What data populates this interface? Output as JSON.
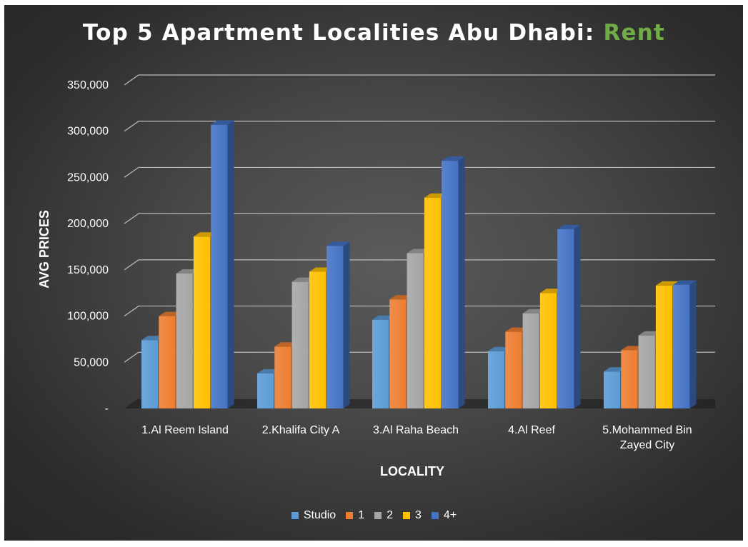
{
  "title": {
    "main": "Top 5 Apartment Localities Abu Dhabi: ",
    "accent": "Rent"
  },
  "chart_data": {
    "type": "bar",
    "title": "Top 5 Apartment Localities Abu Dhabi: Rent",
    "xlabel": "LOCALITY",
    "ylabel": "AVG PRICES",
    "ylim": [
      0,
      350000
    ],
    "yticks": [
      {
        "value": 0,
        "label": "-"
      },
      {
        "value": 50000,
        "label": "50,000"
      },
      {
        "value": 100000,
        "label": "100,000"
      },
      {
        "value": 150000,
        "label": "150,000"
      },
      {
        "value": 200000,
        "label": "200,000"
      },
      {
        "value": 250000,
        "label": "250,000"
      },
      {
        "value": 300000,
        "label": "300,000"
      },
      {
        "value": 350000,
        "label": "350,000"
      }
    ],
    "categories": [
      [
        "1.Al Reem Island"
      ],
      [
        "2.Khalifa City A"
      ],
      [
        "3.Al Raha Beach"
      ],
      [
        "4.Al Reef"
      ],
      [
        "5.Mohammed Bin",
        "Zayed City"
      ]
    ],
    "series": [
      {
        "name": "Studio",
        "color": "#5b9bd5",
        "values": [
          74000,
          38000,
          96000,
          62000,
          40000
        ]
      },
      {
        "name": "1",
        "color": "#ed7d31",
        "values": [
          100000,
          67000,
          118000,
          83000,
          63000
        ]
      },
      {
        "name": "2",
        "color": "#a5a5a5",
        "values": [
          146000,
          137000,
          168000,
          103000,
          79000
        ]
      },
      {
        "name": "3",
        "color": "#ffc000",
        "values": [
          186000,
          148000,
          228000,
          125000,
          133000
        ]
      },
      {
        "name": "4+",
        "color": "#4472c4",
        "values": [
          307000,
          176000,
          268000,
          194000,
          134000
        ]
      }
    ],
    "grid": true,
    "legend_position": "bottom",
    "style": "3d-column"
  }
}
